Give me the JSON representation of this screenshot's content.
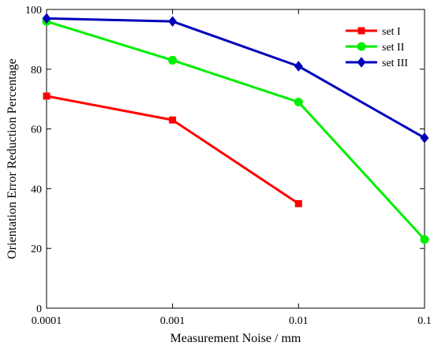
{
  "chart_data": {
    "type": "line",
    "title": "",
    "xlabel": "Measurement Noise / mm",
    "ylabel": "Orientation Error Reduction Percentage",
    "xscale": "log",
    "x_ticks": [
      0.0001,
      0.001,
      0.01,
      0.1
    ],
    "x_tick_labels": [
      "0.0001",
      "0.001",
      "0.01",
      "0.1"
    ],
    "xlim": [
      0.0001,
      0.1
    ],
    "y_ticks": [
      0,
      20,
      40,
      60,
      80,
      100
    ],
    "y_tick_labels": [
      "0",
      "20",
      "40",
      "60",
      "80",
      "100"
    ],
    "ylim": [
      0,
      100
    ],
    "grid": false,
    "legend_position": "top-right",
    "series": [
      {
        "name": "set I",
        "color": "#ff0000",
        "marker": "square",
        "x": [
          0.0001,
          0.001,
          0.01
        ],
        "y": [
          71,
          63,
          35
        ]
      },
      {
        "name": "set II",
        "color": "#00ee00",
        "marker": "circle",
        "x": [
          0.0001,
          0.001,
          0.01,
          0.1
        ],
        "y": [
          96,
          83,
          69,
          23
        ]
      },
      {
        "name": "set III",
        "color": "#0000bb",
        "marker": "diamond",
        "x": [
          0.0001,
          0.001,
          0.01,
          0.1
        ],
        "y": [
          97,
          96,
          81,
          57
        ]
      }
    ]
  }
}
